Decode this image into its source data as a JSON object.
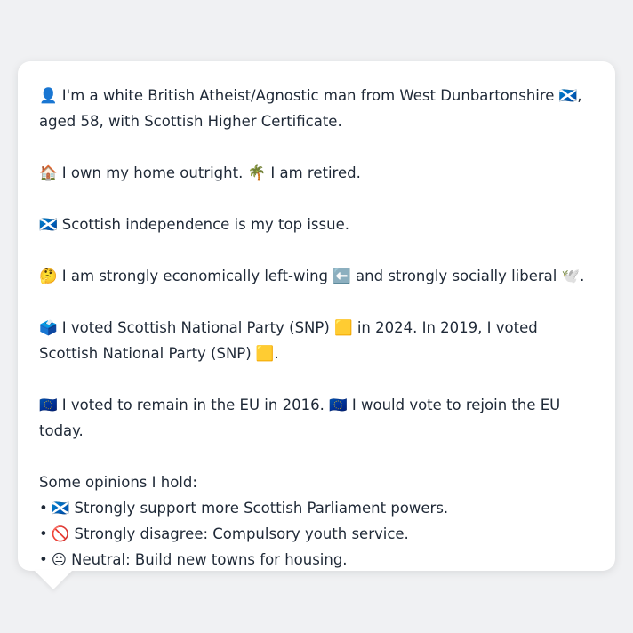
{
  "profile": {
    "identity": "👤 I'm a white British Atheist/Agnostic man from West Dunbartonshire 🏴󠁧󠁢󠁳󠁣󠁴󠁿, aged 58, with Scottish Higher Certificate.",
    "home": "🏠 I own my home outright. 🌴 I am retired.",
    "top_issue": "🏴󠁧󠁢󠁳󠁣󠁴󠁿 Scottish independence is my top issue.",
    "ideology": "🤔 I am strongly economically left-wing ⬅️ and strongly socially liberal 🕊️.",
    "votes": "🗳️ I voted Scottish National Party (SNP) 🟨 in 2024. In 2019, I voted Scottish National Party (SNP) 🟨.",
    "eu": "🇪🇺 I voted to remain in the EU in 2016. 🇪🇺 I would vote to rejoin the EU today.",
    "opinions_heading": "Some opinions I hold:",
    "opinions": [
      {
        "bullet": "•",
        "text": "🏴󠁧󠁢󠁳󠁣󠁴󠁿 Strongly support more Scottish Parliament powers."
      },
      {
        "bullet": "•",
        "text": "🚫 Strongly disagree: Compulsory youth service."
      },
      {
        "bullet": "•",
        "text": "😐 Neutral: Build new towns for housing."
      }
    ]
  },
  "colors": {
    "background": "#f0f1f3",
    "bubble": "#ffffff",
    "text": "#1f2937"
  }
}
